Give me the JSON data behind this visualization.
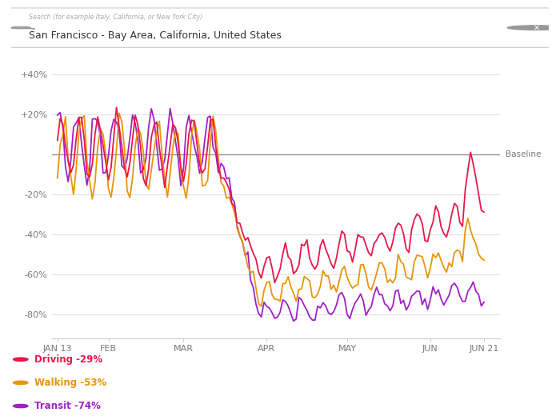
{
  "title_search": "Search (for example Italy, California, or New York City)",
  "title_location": "San Francisco - Bay Area, California, United States",
  "background_color": "#ffffff",
  "plot_bg_color": "#ffffff",
  "driving_color": "#e8174a",
  "walking_color": "#e8950a",
  "transit_color": "#a020c8",
  "baseline_color": "#888888",
  "grid_color": "#e0e0e0",
  "yticks": [
    -80,
    -60,
    -40,
    -20,
    0,
    20,
    40
  ],
  "ytick_labels": [
    "-80%",
    "-60%",
    "-40%",
    "-20%",
    "",
    "+20%",
    "+40%"
  ],
  "ylim": [
    -92,
    52
  ],
  "xtick_labels": [
    "JAN 13",
    "FEB",
    "MAR",
    "APR",
    "MAY",
    "JUN",
    "JUN 21"
  ],
  "legend_driving": "Driving -29%",
  "legend_walking": "Walking -53%",
  "legend_transit": "Transit -74%",
  "baseline_label": "Baseline"
}
